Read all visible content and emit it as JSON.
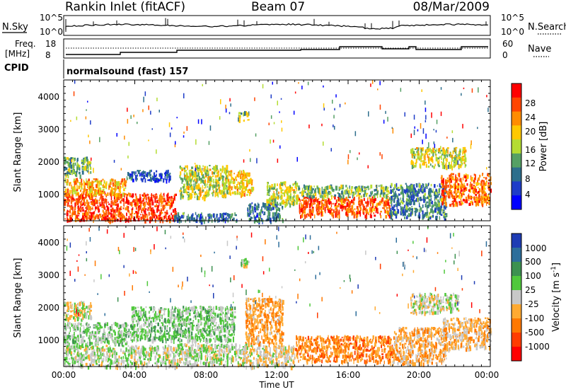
{
  "header": {
    "station": "Rankin Inlet (fitACF)",
    "beam": "Beam 07",
    "date": "08/Mar/2009"
  },
  "noise_panel": {
    "left_label": "N.Sky",
    "right_label": "N.Search",
    "ticks": [
      "10^5",
      "10^0"
    ]
  },
  "freq_panel": {
    "left_label_line1": "Freq.",
    "left_label_line2": "[MHz]",
    "left_ticks": [
      "18",
      "8"
    ],
    "right_ticks": [
      "60",
      "0"
    ],
    "right_label": "Nave"
  },
  "cpid_panel": {
    "label": "CPID",
    "mode": "normalsound (fast) 157"
  },
  "range_axis": {
    "label": "Slant Range [km]",
    "ticks": [
      "4000",
      "3000",
      "2000",
      "1000"
    ]
  },
  "time_axis": {
    "label": "Time UT",
    "ticks": [
      "00:00",
      "04:00",
      "08:00",
      "12:00",
      "16:00",
      "20:00",
      "00:00"
    ]
  },
  "power_scale": {
    "label": "Power [dB]",
    "ticks": [
      "28",
      "24",
      "20",
      "16",
      "12",
      "8",
      "4"
    ],
    "colors": [
      "#ff0000",
      "#ff4500",
      "#ff8c00",
      "#ffc800",
      "#b4dc32",
      "#55a064",
      "#2d6e8c",
      "#1e3cc8",
      "#0000ff"
    ]
  },
  "velocity_scale": {
    "label": "Velocity [m s",
    "label_sup": "-1",
    "label_end": "]",
    "ticks": [
      "1000",
      "500",
      "100",
      "25",
      "-25",
      "-100",
      "-500",
      "-1000"
    ],
    "colors": [
      "#1e3cb4",
      "#2d6e9b",
      "#3c9150",
      "#50c83c",
      "#c8c8c8",
      "#ffaa32",
      "#ff7800",
      "#ff3c00",
      "#ff0000"
    ]
  },
  "chart_data": [
    {
      "type": "heatmap",
      "title": "Power",
      "xlabel": "Time UT",
      "ylabel": "Slant Range [km]",
      "xlim": [
        0,
        24
      ],
      "ylim": [
        180,
        4500
      ],
      "colorbar_label": "Power [dB]",
      "colorbar_range": [
        0,
        32
      ],
      "bands": [
        {
          "t0": 0.0,
          "t1": 6.3,
          "r0": 220,
          "r1": 1050,
          "value": 27
        },
        {
          "t0": 0.0,
          "t1": 3.5,
          "r0": 1000,
          "r1": 1500,
          "value": 21
        },
        {
          "t0": 0.0,
          "t1": 1.5,
          "r0": 1600,
          "r1": 2150,
          "value": 14
        },
        {
          "t0": 3.5,
          "t1": 6.0,
          "r0": 1450,
          "r1": 1750,
          "value": 7
        },
        {
          "t0": 6.5,
          "t1": 9.3,
          "r0": 900,
          "r1": 1900,
          "value": 17
        },
        {
          "t0": 6.2,
          "t1": 9.8,
          "r0": 200,
          "r1": 450,
          "value": 9
        },
        {
          "t0": 9.2,
          "t1": 10.6,
          "r0": 1000,
          "r1": 1750,
          "value": 20
        },
        {
          "t0": 9.8,
          "t1": 10.4,
          "r0": 3250,
          "r1": 3550,
          "value": 15
        },
        {
          "t0": 10.3,
          "t1": 12.3,
          "r0": 200,
          "r1": 750,
          "value": 9
        },
        {
          "t0": 11.4,
          "t1": 13.2,
          "r0": 700,
          "r1": 1400,
          "value": 17
        },
        {
          "t0": 13.2,
          "t1": 18.3,
          "r0": 350,
          "r1": 950,
          "value": 26
        },
        {
          "t0": 13.2,
          "t1": 18.3,
          "r0": 950,
          "r1": 1300,
          "value": 14
        },
        {
          "t0": 18.3,
          "t1": 21.5,
          "r0": 300,
          "r1": 1350,
          "value": 10
        },
        {
          "t0": 19.5,
          "t1": 22.6,
          "r0": 1850,
          "r1": 2450,
          "value": 17
        },
        {
          "t0": 21.2,
          "t1": 24.0,
          "r0": 700,
          "r1": 1650,
          "value": 25
        }
      ]
    },
    {
      "type": "heatmap",
      "title": "Velocity",
      "xlabel": "Time UT",
      "ylabel": "Slant Range [km]",
      "xlim": [
        0,
        24
      ],
      "ylim": [
        180,
        4500
      ],
      "colorbar_label": "Velocity [m s-1]",
      "colorbar_range": [
        -1000,
        1000
      ],
      "bands": [
        {
          "t0": 0.0,
          "t1": 1.5,
          "r0": 1650,
          "r1": 2200,
          "value": 0
        },
        {
          "t0": 0.0,
          "t1": 3.8,
          "r0": 900,
          "r1": 1550,
          "value": 150
        },
        {
          "t0": 0.0,
          "t1": 6.3,
          "r0": 200,
          "r1": 850,
          "value": 60
        },
        {
          "t0": 3.8,
          "t1": 9.6,
          "r0": 1000,
          "r1": 2050,
          "value": 180
        },
        {
          "t0": 6.3,
          "t1": 10.3,
          "r0": 250,
          "r1": 900,
          "value": 40
        },
        {
          "t0": 9.8,
          "t1": 10.4,
          "r0": 3300,
          "r1": 3550,
          "value": 90
        },
        {
          "t0": 10.2,
          "t1": 12.3,
          "r0": 900,
          "r1": 2300,
          "value": -300
        },
        {
          "t0": 10.0,
          "t1": 13.0,
          "r0": 200,
          "r1": 850,
          "value": -60
        },
        {
          "t0": 13.0,
          "t1": 18.5,
          "r0": 350,
          "r1": 1150,
          "value": -400
        },
        {
          "t0": 18.5,
          "t1": 21.5,
          "r0": 300,
          "r1": 1400,
          "value": -250
        },
        {
          "t0": 19.5,
          "t1": 22.2,
          "r0": 1850,
          "r1": 2450,
          "value": 0
        },
        {
          "t0": 21.3,
          "t1": 24.0,
          "r0": 750,
          "r1": 1700,
          "value": -150
        }
      ]
    }
  ]
}
